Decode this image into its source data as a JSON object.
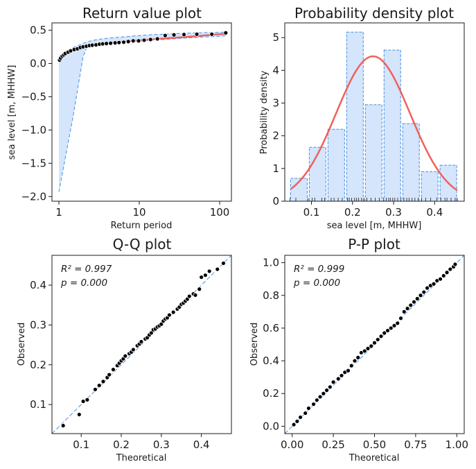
{
  "colors": {
    "fit_line": "#f0605a",
    "band_fill": "#d4e5fc",
    "band_edge": "#4a90e2",
    "points": "#000000",
    "hist_fill": "#d4e5fc",
    "hist_edge": "#4a90e2",
    "ref_line": "#4a90e2"
  },
  "chart_data": [
    {
      "id": "return",
      "type": "line",
      "title": "Return value plot",
      "xlabel": "Return period",
      "ylabel": "sea level [m, MHHW]",
      "xscale": "log",
      "xlim": [
        0.82,
        140
      ],
      "ylim": [
        -2.07,
        0.61
      ],
      "xticks": [
        1,
        10,
        100
      ],
      "xticklabels": [
        "1",
        "10",
        "100"
      ],
      "yticks": [
        0.5,
        0.0,
        -0.5,
        -1.0,
        -1.5,
        -2.0
      ],
      "yticklabels": [
        "0.5",
        "0.0",
        "−0.5",
        "−1.0",
        "−1.5",
        "−2.0"
      ],
      "fit": {
        "x": [
          1.0,
          1.1,
          1.25,
          1.5,
          1.75,
          2.0,
          2.5,
          3,
          4,
          5,
          7,
          10,
          15,
          20,
          30,
          50,
          70,
          100,
          120
        ],
        "y": [
          0.06,
          0.11,
          0.15,
          0.2,
          0.23,
          0.25,
          0.27,
          0.285,
          0.305,
          0.32,
          0.335,
          0.35,
          0.365,
          0.375,
          0.39,
          0.41,
          0.425,
          0.44,
          0.445
        ]
      },
      "ci_upper": {
        "x": [
          1.0,
          1.1,
          1.25,
          1.5,
          1.75,
          2.0,
          2.2,
          2.5,
          3,
          4,
          5,
          7,
          10,
          15,
          20,
          30,
          50,
          70,
          100,
          120
        ],
        "y": [
          0.1,
          0.15,
          0.19,
          0.24,
          0.27,
          0.3,
          0.32,
          0.34,
          0.36,
          0.38,
          0.39,
          0.405,
          0.42,
          0.435,
          0.44,
          0.45,
          0.46,
          0.465,
          0.47,
          0.47
        ]
      },
      "ci_lower": {
        "x": [
          1.0,
          1.5,
          2.0,
          2.2,
          2.5,
          3,
          4,
          5,
          7,
          10,
          15,
          20,
          30,
          50,
          70,
          100,
          120
        ],
        "y": [
          -1.93,
          -0.8,
          0.1,
          0.23,
          0.25,
          0.27,
          0.29,
          0.305,
          0.32,
          0.335,
          0.35,
          0.36,
          0.375,
          0.39,
          0.4,
          0.41,
          0.415
        ]
      },
      "observed": {
        "x": [
          1.02,
          1.05,
          1.1,
          1.15,
          1.2,
          1.3,
          1.4,
          1.55,
          1.7,
          1.85,
          2.0,
          2.2,
          2.4,
          2.6,
          2.9,
          3.2,
          3.5,
          3.9,
          4.4,
          5.0,
          5.6,
          6.4,
          7.3,
          8.4,
          9.8,
          11.5,
          13.8,
          16.8,
          21,
          27,
          36,
          52,
          80,
          119
        ],
        "y": [
          0.05,
          0.08,
          0.11,
          0.13,
          0.15,
          0.17,
          0.19,
          0.21,
          0.22,
          0.24,
          0.25,
          0.26,
          0.27,
          0.275,
          0.28,
          0.29,
          0.295,
          0.3,
          0.305,
          0.31,
          0.315,
          0.32,
          0.33,
          0.34,
          0.34,
          0.35,
          0.36,
          0.37,
          0.42,
          0.43,
          0.435,
          0.44,
          0.44,
          0.46
        ]
      }
    },
    {
      "id": "pdf",
      "type": "bar",
      "title": "Probability density plot",
      "xlabel": "sea level [m, MHHW]",
      "ylabel": "Probability density",
      "xlim": [
        0.035,
        0.472
      ],
      "ylim": [
        0,
        5.45
      ],
      "xticks": [
        0.1,
        0.2,
        0.3,
        0.4
      ],
      "xticklabels": [
        "0.1",
        "0.2",
        "0.3",
        "0.4"
      ],
      "yticks": [
        0,
        1,
        2,
        3,
        4,
        5
      ],
      "yticklabels": [
        "0",
        "1",
        "2",
        "3",
        "4",
        "5"
      ],
      "bin_width": 0.0455,
      "bin_left": [
        0.0467,
        0.0922,
        0.1377,
        0.1832,
        0.2287,
        0.2742,
        0.3197,
        0.3652,
        0.4107
      ],
      "values": [
        0.7,
        1.65,
        2.2,
        5.17,
        2.95,
        4.62,
        2.37,
        0.9,
        1.1
      ],
      "pdf_curve": {
        "mean": 0.25,
        "sd": 0.09,
        "peak": 4.43,
        "x_from": 0.05,
        "x_to": 0.455
      },
      "rug_x": [
        0.048,
        0.062,
        0.092,
        0.102,
        0.108,
        0.125,
        0.132,
        0.148,
        0.155,
        0.165,
        0.175,
        0.188,
        0.192,
        0.198,
        0.205,
        0.21,
        0.215,
        0.222,
        0.228,
        0.235,
        0.245,
        0.255,
        0.265,
        0.275,
        0.282,
        0.288,
        0.292,
        0.298,
        0.303,
        0.31,
        0.318,
        0.325,
        0.332,
        0.338,
        0.345,
        0.352,
        0.36,
        0.368,
        0.378,
        0.39,
        0.405,
        0.415,
        0.425,
        0.43,
        0.44,
        0.45,
        0.455
      ]
    },
    {
      "id": "qq",
      "type": "scatter",
      "title": "Q-Q plot",
      "xlabel": "Theoretical",
      "ylabel": "Observed",
      "xlim": [
        0.027,
        0.475
      ],
      "ylim": [
        0.027,
        0.475
      ],
      "xticks": [
        0.1,
        0.2,
        0.3,
        0.4
      ],
      "xticklabels": [
        "0.1",
        "0.2",
        "0.3",
        "0.4"
      ],
      "yticks": [
        0.1,
        0.2,
        0.3,
        0.4
      ],
      "yticklabels": [
        "0.1",
        "0.2",
        "0.3",
        "0.4"
      ],
      "annotation_r2": "R² = 0.997",
      "annotation_p": "p = 0.000",
      "x": [
        0.055,
        0.095,
        0.105,
        0.115,
        0.135,
        0.145,
        0.155,
        0.165,
        0.17,
        0.18,
        0.19,
        0.195,
        0.2,
        0.205,
        0.21,
        0.22,
        0.225,
        0.23,
        0.24,
        0.245,
        0.25,
        0.26,
        0.265,
        0.27,
        0.275,
        0.28,
        0.285,
        0.29,
        0.295,
        0.3,
        0.305,
        0.31,
        0.315,
        0.32,
        0.33,
        0.34,
        0.345,
        0.35,
        0.355,
        0.36,
        0.365,
        0.37,
        0.38,
        0.385,
        0.395,
        0.4,
        0.41,
        0.42,
        0.44,
        0.455
      ],
      "y": [
        0.047,
        0.075,
        0.108,
        0.112,
        0.138,
        0.148,
        0.158,
        0.168,
        0.175,
        0.188,
        0.198,
        0.204,
        0.21,
        0.215,
        0.222,
        0.228,
        0.232,
        0.238,
        0.248,
        0.252,
        0.258,
        0.265,
        0.268,
        0.275,
        0.28,
        0.288,
        0.29,
        0.295,
        0.298,
        0.302,
        0.31,
        0.315,
        0.318,
        0.325,
        0.332,
        0.34,
        0.345,
        0.352,
        0.355,
        0.36,
        0.365,
        0.372,
        0.378,
        0.375,
        0.39,
        0.42,
        0.425,
        0.435,
        0.44,
        0.455
      ]
    },
    {
      "id": "pp",
      "type": "scatter",
      "title": "P-P plot",
      "xlabel": "Theoretical",
      "ylabel": "Observed",
      "xlim": [
        -0.045,
        1.045
      ],
      "ylim": [
        -0.045,
        1.045
      ],
      "xticks": [
        0.0,
        0.25,
        0.5,
        0.75,
        1.0
      ],
      "xticklabels": [
        "0.00",
        "0.25",
        "0.50",
        "0.75",
        "1.00"
      ],
      "yticks": [
        0.0,
        0.2,
        0.4,
        0.6,
        0.8,
        1.0
      ],
      "yticklabels": [
        "0.0",
        "0.2",
        "0.4",
        "0.6",
        "0.8",
        "1.0"
      ],
      "annotation_r2": "R² = 0.999",
      "annotation_p": "p = 0.000",
      "x": [
        0.01,
        0.03,
        0.05,
        0.08,
        0.1,
        0.13,
        0.15,
        0.17,
        0.19,
        0.21,
        0.23,
        0.25,
        0.28,
        0.3,
        0.32,
        0.34,
        0.36,
        0.38,
        0.4,
        0.42,
        0.44,
        0.46,
        0.48,
        0.5,
        0.52,
        0.54,
        0.56,
        0.58,
        0.6,
        0.62,
        0.64,
        0.66,
        0.68,
        0.7,
        0.72,
        0.74,
        0.76,
        0.78,
        0.8,
        0.82,
        0.84,
        0.86,
        0.88,
        0.9,
        0.92,
        0.94,
        0.96,
        0.98,
        0.99
      ],
      "y": [
        0.01,
        0.03,
        0.055,
        0.08,
        0.11,
        0.135,
        0.16,
        0.18,
        0.2,
        0.22,
        0.24,
        0.27,
        0.29,
        0.31,
        0.33,
        0.34,
        0.37,
        0.4,
        0.42,
        0.45,
        0.46,
        0.475,
        0.49,
        0.51,
        0.53,
        0.55,
        0.57,
        0.585,
        0.6,
        0.615,
        0.63,
        0.66,
        0.7,
        0.72,
        0.74,
        0.76,
        0.78,
        0.8,
        0.82,
        0.845,
        0.86,
        0.87,
        0.89,
        0.9,
        0.92,
        0.94,
        0.96,
        0.975,
        0.99
      ]
    }
  ]
}
